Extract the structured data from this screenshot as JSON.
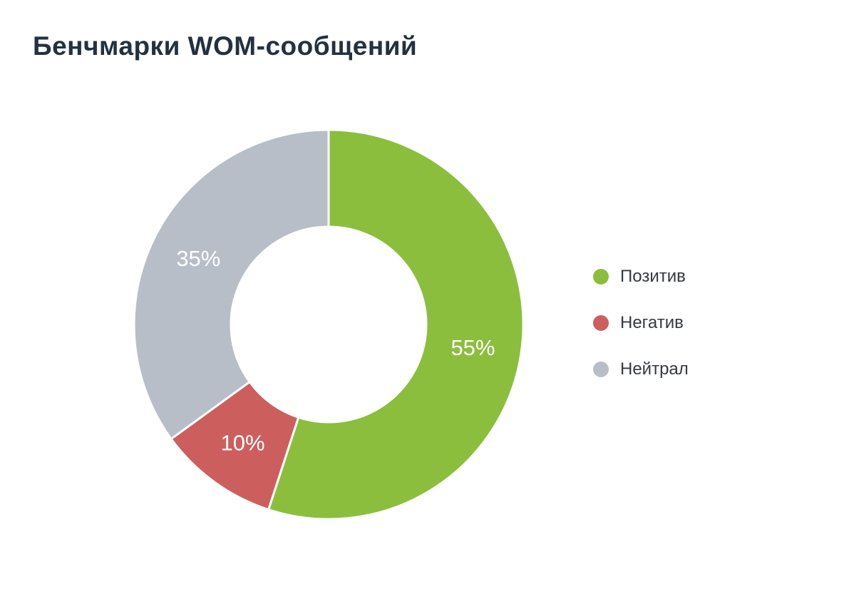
{
  "page": {
    "title": "Бенчмарки WOM-сообщений",
    "background_color": "#ffffff",
    "title_color": "#233140"
  },
  "chart_data": {
    "type": "pie",
    "subtype": "donut",
    "title": "Бенчмарки WOM-сообщений",
    "categories": [
      "Позитив",
      "Негатив",
      "Нейтрал"
    ],
    "values": [
      55,
      10,
      35
    ],
    "labels": [
      "55%",
      "10%",
      "35%"
    ],
    "colors": [
      "#8BBE3D",
      "#CC5F5E",
      "#B8BEC8"
    ],
    "label_color": "#ffffff",
    "start_angle": "top",
    "direction": "clockwise",
    "legend_position": "right",
    "grid": "off"
  },
  "legend": {
    "items": [
      {
        "label": "Позитив",
        "color": "#8BBE3D"
      },
      {
        "label": "Негатив",
        "color": "#CC5F5E"
      },
      {
        "label": "Нейтрал",
        "color": "#B8BEC8"
      }
    ]
  }
}
